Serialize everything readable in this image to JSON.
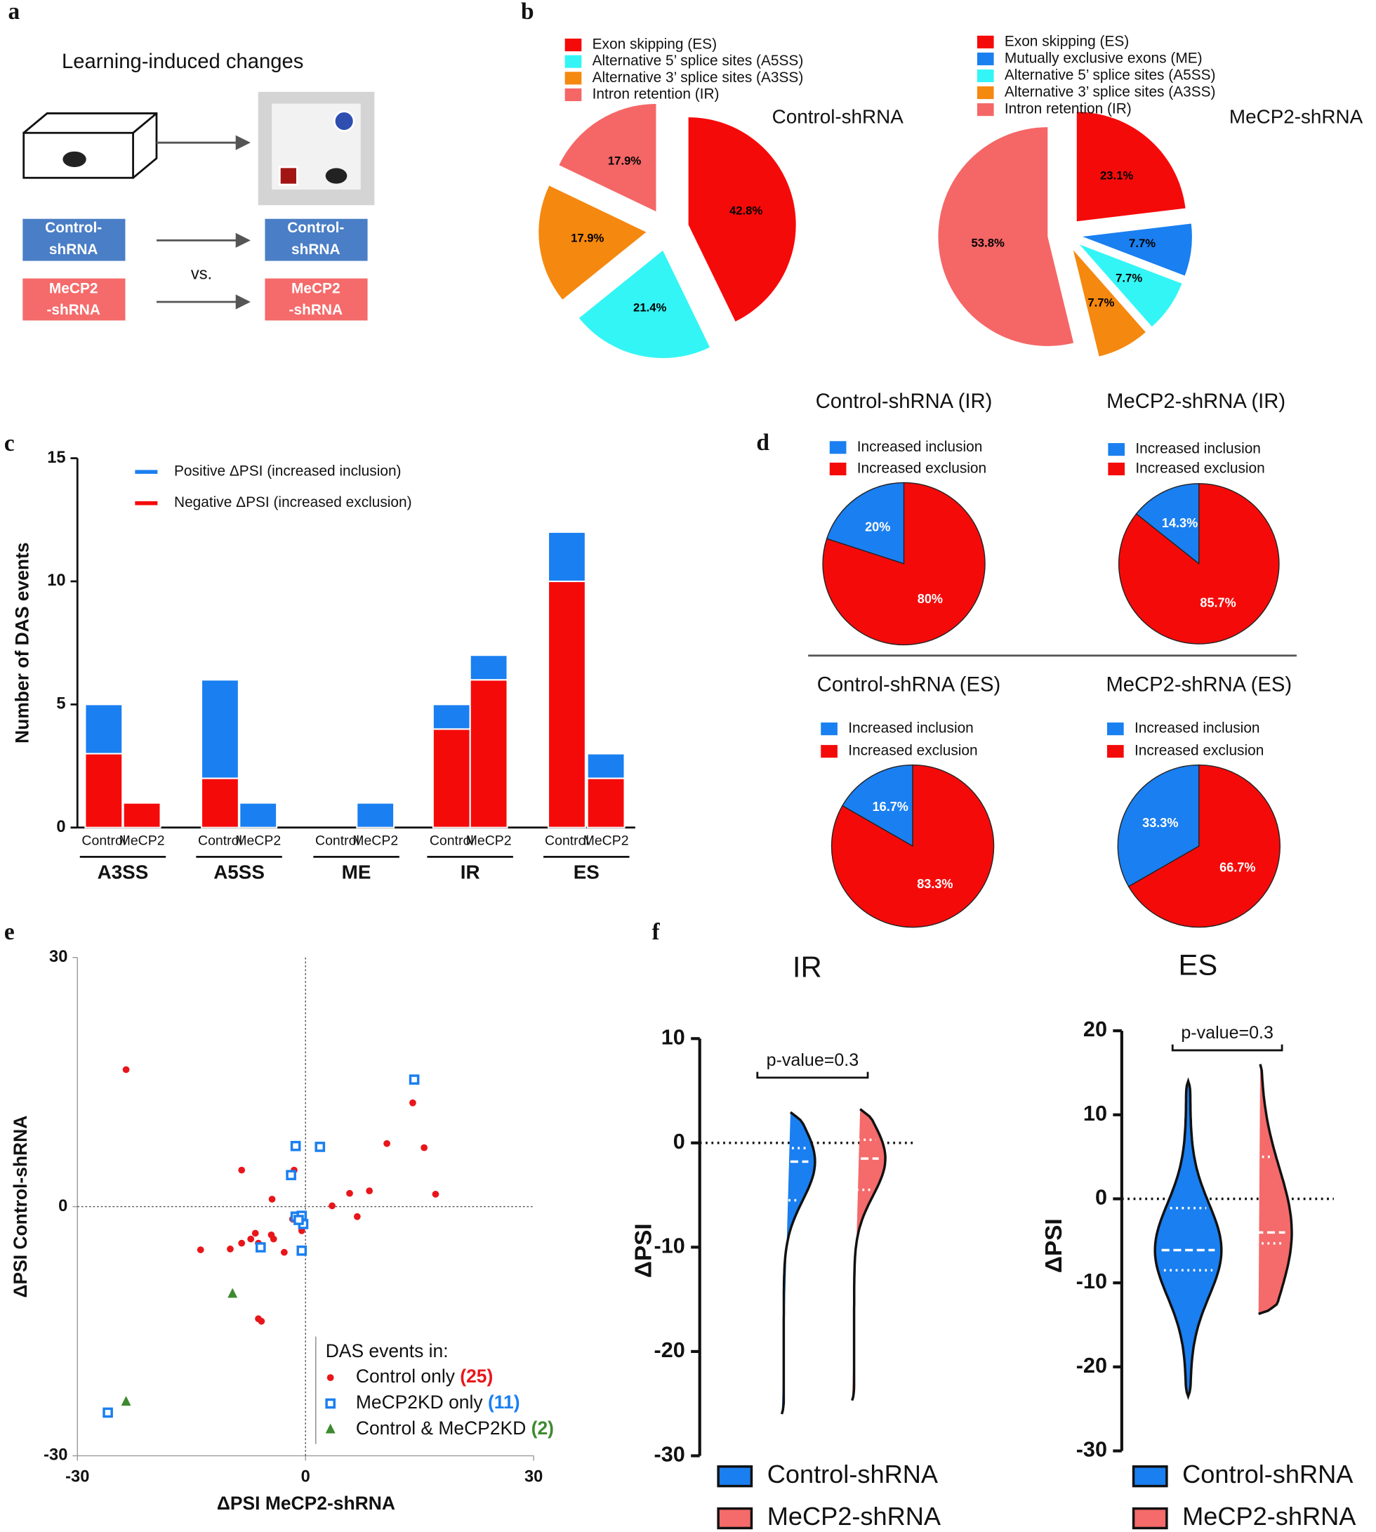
{
  "panel_labels": [
    "a",
    "b",
    "c",
    "d",
    "e",
    "f"
  ],
  "panel_a": {
    "title": "Learning-induced changes",
    "control": [
      "Control-",
      "shRNA"
    ],
    "mecp2": [
      "MeCP2",
      "-shRNA"
    ],
    "vs": "vs."
  },
  "chart_data": [
    {
      "type": "pie",
      "title": "Control-shRNA",
      "categories": [
        "Exon skipping (ES)",
        "Alternative 5’ splice sites (A5SS)",
        "Alternative 3’ splice sites (A3SS)",
        "Intron retention (IR)"
      ],
      "values": [
        42.8,
        21.4,
        17.9,
        17.9
      ],
      "value_labels": [
        "42.8%",
        "21.4%",
        "17.9%",
        "17.9%"
      ],
      "colors": [
        "#f50a0a",
        "#33f5f5",
        "#f5880f",
        "#f56666"
      ]
    },
    {
      "type": "pie",
      "title": "MeCP2-shRNA",
      "categories": [
        "Exon skipping (ES)",
        "Mutually exclusive exons (ME)",
        "Alternative 5’ splice sites (A5SS)",
        "Alternative 3’ splice sites (A3SS)",
        "Intron retention (IR)"
      ],
      "values": [
        23.1,
        7.7,
        7.7,
        7.7,
        53.8
      ],
      "value_labels": [
        "23.1%",
        "7.7%",
        "7.7%",
        "7.7%",
        "53.8%"
      ],
      "colors": [
        "#f50a0a",
        "#1a7ff0",
        "#33f5f5",
        "#f5880f",
        "#f56666"
      ]
    },
    {
      "type": "bar",
      "stacked": true,
      "ylabel": "Number of DAS events",
      "categories": [
        "Control",
        "MeCP2",
        "Control",
        "MeCP2",
        "Control",
        "MeCP2",
        "Control",
        "MeCP2",
        "Control",
        "MeCP2"
      ],
      "groups": [
        "A3SS",
        "A5SS",
        "ME",
        "IR",
        "ES"
      ],
      "series": [
        {
          "name": "Negative ΔPSI (increased exclusion)",
          "color": "#f50a0a",
          "values": [
            3,
            1,
            2,
            0,
            0,
            0,
            4,
            6,
            10,
            2
          ]
        },
        {
          "name": "Positive ΔPSI (increased inclusion)",
          "color": "#1a7ff0",
          "values": [
            2,
            0,
            4,
            1,
            0,
            1,
            1,
            1,
            2,
            1
          ]
        }
      ],
      "ylim": [
        0,
        15
      ],
      "yticks": [
        0,
        5,
        10,
        15
      ]
    },
    {
      "type": "pie",
      "title": "Control-shRNA (IR)",
      "categories": [
        "Increased inclusion",
        "Increased exclusion"
      ],
      "values": [
        20,
        80
      ],
      "value_labels": [
        "20%",
        "80%"
      ],
      "colors": [
        "#1a7ff0",
        "#f50a0a"
      ]
    },
    {
      "type": "pie",
      "title": "MeCP2-shRNA (IR)",
      "categories": [
        "Increased inclusion",
        "Increased exclusion"
      ],
      "values": [
        14.3,
        85.7
      ],
      "value_labels": [
        "14.3%",
        "85.7%"
      ],
      "colors": [
        "#1a7ff0",
        "#f50a0a"
      ]
    },
    {
      "type": "pie",
      "title": "Control-shRNA (ES)",
      "categories": [
        "Increased inclusion",
        "Increased exclusion"
      ],
      "values": [
        16.7,
        83.3
      ],
      "value_labels": [
        "16.7%",
        "83.3%"
      ],
      "colors": [
        "#1a7ff0",
        "#f50a0a"
      ]
    },
    {
      "type": "pie",
      "title": "MeCP2-shRNA (ES)",
      "categories": [
        "Increased inclusion",
        "Increased exclusion"
      ],
      "values": [
        33.3,
        66.7
      ],
      "value_labels": [
        "33.3%",
        "66.7%"
      ],
      "colors": [
        "#1a7ff0",
        "#f50a0a"
      ]
    },
    {
      "type": "scatter",
      "xlabel": "ΔPSI MeCP2-shRNA",
      "ylabel": "ΔPSI Control-shRNA",
      "xlim": [
        -30,
        30
      ],
      "ylim": [
        -30,
        30
      ],
      "xticks": [
        -30,
        0,
        30
      ],
      "yticks": [
        -30,
        0,
        30
      ],
      "legend_title": "DAS events in:",
      "series": [
        {
          "name": "Control only",
          "count_label": "(25)",
          "color": "#e8161b",
          "marker": "circle",
          "x": [
            -23.6,
            -8.4,
            -1.5,
            -4.4,
            -1.7,
            3.5,
            5.8,
            8.4,
            6.8,
            10.7,
            14.1,
            15.6,
            17.1,
            -13.8,
            -9.9,
            -8.4,
            -6.6,
            -6.2,
            -4.2,
            -4.5,
            -2.8,
            -5.8,
            -6.2,
            -0.5,
            -7.2
          ],
          "y": [
            16.5,
            4.4,
            4.4,
            0.9,
            -1.5,
            0.1,
            1.6,
            1.9,
            -1.2,
            7.6,
            12.5,
            7.1,
            1.5,
            -5.2,
            -5.1,
            -4.4,
            -3.2,
            -4.4,
            -3.9,
            -3.4,
            -5.5,
            -13.8,
            -13.5,
            -2.9,
            -3.9
          ]
        },
        {
          "name": "MeCP2KD only",
          "count_label": "(11)",
          "color": "#1a7ff0",
          "marker": "square",
          "x": [
            14.3,
            -1.3,
            1.9,
            -1.9,
            -1.3,
            -0.5,
            -0.3,
            -0.5,
            -5.9,
            -26.0,
            -0.9
          ],
          "y": [
            15.3,
            7.3,
            7.2,
            3.8,
            -1.2,
            -1.1,
            -2.1,
            -5.3,
            -4.9,
            -24.8,
            -1.6
          ]
        },
        {
          "name": "Control & MeCP2KD",
          "count_label": "(2)",
          "color": "#3d8a2e",
          "marker": "triangle",
          "x": [
            -9.6,
            -23.6
          ],
          "y": [
            -10.5,
            -23.5
          ]
        }
      ]
    },
    {
      "type": "violin",
      "title": "IR",
      "ylabel": "ΔPSI",
      "annotation": "p-value=0.3",
      "ylim": [
        -30,
        10
      ],
      "yticks": [
        -30,
        -20,
        -10,
        0,
        10
      ],
      "series": [
        {
          "name": "Control-shRNA",
          "color": "#1a7ff0",
          "min": -26,
          "q1": -5.5,
          "median": -1.8,
          "q3": -0.5,
          "max": 3.3
        },
        {
          "name": "MeCP2-shRNA",
          "color": "#f56a6a",
          "min": -24.7,
          "q1": -4.5,
          "median": -1.5,
          "q3": 0.3,
          "max": 3.6
        }
      ]
    },
    {
      "type": "violin",
      "title": "ES",
      "ylabel": "ΔPSI",
      "annotation": "p-value=0.3",
      "ylim": [
        -30,
        20
      ],
      "yticks": [
        -30,
        -20,
        -10,
        0,
        10,
        20
      ],
      "series": [
        {
          "name": "Control-shRNA",
          "color": "#1a7ff0",
          "min": -23.5,
          "q1": -8.5,
          "median": -6.1,
          "q3": -1.1,
          "max": 14
        },
        {
          "name": "MeCP2-shRNA",
          "color": "#f56a6a",
          "min": -13.7,
          "q1": -5.3,
          "median": -4,
          "q3": 5,
          "max": 16.4
        }
      ]
    }
  ]
}
